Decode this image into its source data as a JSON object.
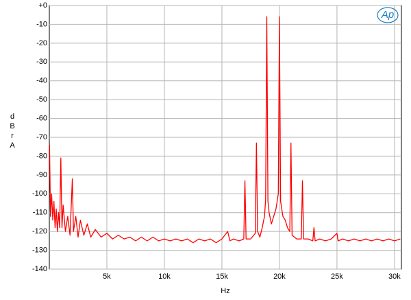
{
  "chart_data": {
    "type": "line",
    "x_label": "Hz",
    "y_label": "dBr A",
    "logo": "Ap",
    "color": "#ff0000",
    "grid": true,
    "xlim": [
      0,
      30600
    ],
    "ylim": [
      -140,
      0
    ],
    "xticks": [
      {
        "value": 5000,
        "label": "5k"
      },
      {
        "value": 10000,
        "label": "10k"
      },
      {
        "value": 15000,
        "label": "15k"
      },
      {
        "value": 20000,
        "label": "20k"
      },
      {
        "value": 25000,
        "label": "25k"
      },
      {
        "value": 30000,
        "label": "30k"
      }
    ],
    "yticks": [
      {
        "value": 0,
        "label": "+0"
      },
      -10,
      -20,
      -30,
      -40,
      -50,
      -60,
      -70,
      -80,
      -90,
      -100,
      -110,
      -120,
      -130,
      -140
    ],
    "x": [
      20,
      100,
      200,
      300,
      400,
      500,
      600,
      700,
      800,
      900,
      1000,
      1100,
      1200,
      1400,
      1600,
      1800,
      2000,
      2100,
      2300,
      2500,
      2700,
      3000,
      3300,
      3600,
      4000,
      4500,
      5000,
      5500,
      6000,
      6500,
      7000,
      7500,
      8000,
      8500,
      9000,
      9500,
      10000,
      10500,
      11000,
      11500,
      12000,
      12500,
      13000,
      13500,
      14000,
      14500,
      15000,
      15500,
      15700,
      16000,
      16500,
      16900,
      17000,
      17100,
      17500,
      17900,
      18000,
      18100,
      18300,
      18500,
      18700,
      18800,
      18900,
      19000,
      19100,
      19300,
      19500,
      19700,
      19900,
      20000,
      20100,
      20300,
      20500,
      20700,
      20900,
      21000,
      21100,
      21500,
      21900,
      22000,
      22100,
      22500,
      22900,
      23000,
      23100,
      23500,
      24000,
      24500,
      25000,
      25100,
      25500,
      26000,
      26500,
      27000,
      27500,
      28000,
      28500,
      29000,
      29500,
      30000,
      30500
    ],
    "values": [
      -74,
      -112,
      -100,
      -114,
      -104,
      -118,
      -108,
      -120,
      -110,
      -118,
      -81,
      -118,
      -106,
      -120,
      -112,
      -122,
      -92,
      -120,
      -112,
      -123,
      -114,
      -122,
      -116,
      -123,
      -119,
      -123,
      -121,
      -124,
      -122,
      -124,
      -123,
      -125,
      -123,
      -125,
      -123,
      -125,
      -124,
      -125,
      -124,
      -125,
      -124,
      -126,
      -124,
      -125,
      -124,
      -126,
      -124,
      -120,
      -125,
      -124,
      -125,
      -124,
      -93,
      -124,
      -124,
      -121,
      -73,
      -120,
      -123,
      -118,
      -112,
      -103,
      -6,
      -104,
      -110,
      -116,
      -112,
      -108,
      -100,
      -6,
      -104,
      -112,
      -114,
      -118,
      -120,
      -73,
      -122,
      -124,
      -124,
      -93,
      -124,
      -124,
      -125,
      -118,
      -125,
      -124,
      -125,
      -124,
      -121,
      -125,
      -124,
      -125,
      -124,
      -125,
      -124,
      -125,
      -124,
      -125,
      -124,
      -125,
      -124
    ]
  }
}
